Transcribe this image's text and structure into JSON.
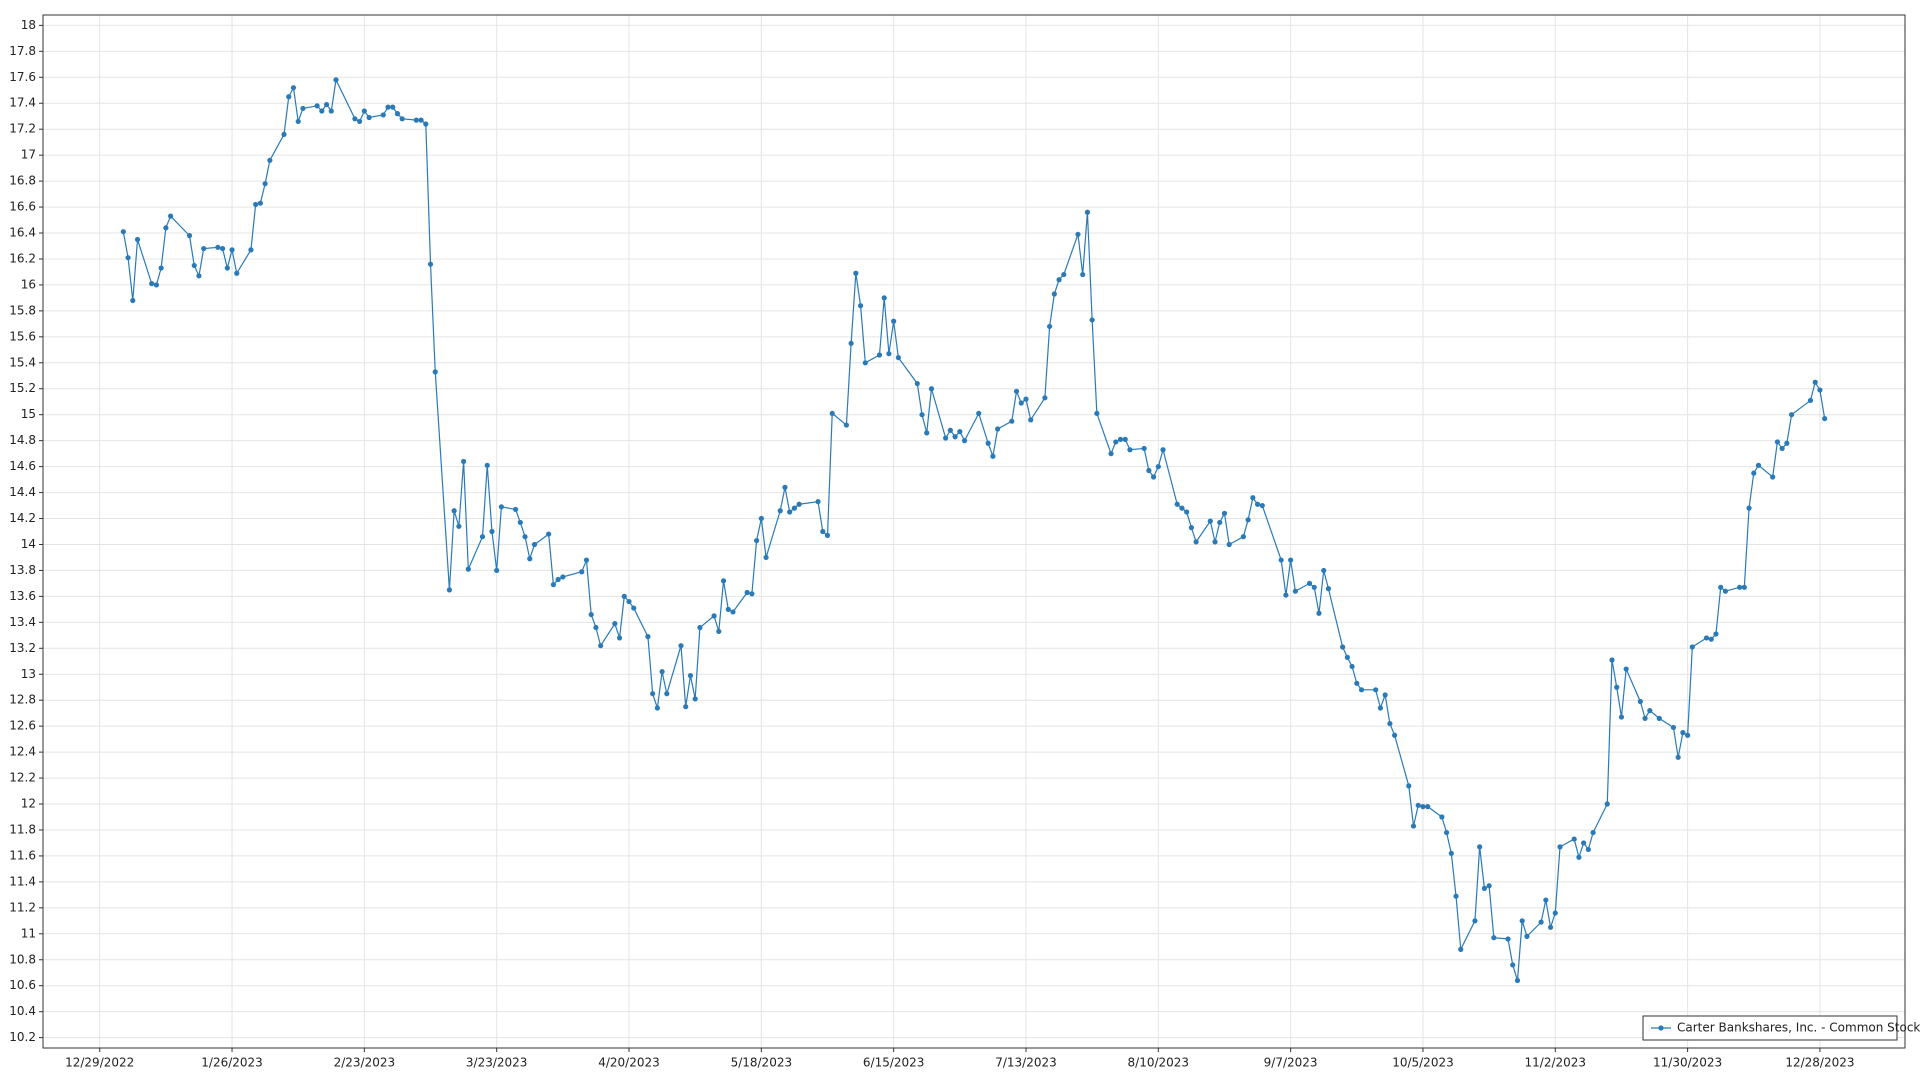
{
  "chart_data": {
    "type": "line",
    "x": [
      "1/3/2023",
      "1/4/2023",
      "1/5/2023",
      "1/6/2023",
      "1/9/2023",
      "1/10/2023",
      "1/11/2023",
      "1/12/2023",
      "1/13/2023",
      "1/17/2023",
      "1/18/2023",
      "1/19/2023",
      "1/20/2023",
      "1/23/2023",
      "1/24/2023",
      "1/25/2023",
      "1/26/2023",
      "1/27/2023",
      "1/30/2023",
      "1/31/2023",
      "2/1/2023",
      "2/2/2023",
      "2/3/2023",
      "2/6/2023",
      "2/7/2023",
      "2/8/2023",
      "2/9/2023",
      "2/10/2023",
      "2/13/2023",
      "2/14/2023",
      "2/15/2023",
      "2/16/2023",
      "2/17/2023",
      "2/21/2023",
      "2/22/2023",
      "2/23/2023",
      "2/24/2023",
      "2/27/2023",
      "2/28/2023",
      "3/1/2023",
      "3/2/2023",
      "3/3/2023",
      "3/6/2023",
      "3/7/2023",
      "3/8/2023",
      "3/9/2023",
      "3/10/2023",
      "3/13/2023",
      "3/14/2023",
      "3/15/2023",
      "3/16/2023",
      "3/17/2023",
      "3/20/2023",
      "3/21/2023",
      "3/22/2023",
      "3/23/2023",
      "3/24/2023",
      "3/27/2023",
      "3/28/2023",
      "3/29/2023",
      "3/30/2023",
      "3/31/2023",
      "4/3/2023",
      "4/4/2023",
      "4/5/2023",
      "4/6/2023",
      "4/10/2023",
      "4/11/2023",
      "4/12/2023",
      "4/13/2023",
      "4/14/2023",
      "4/17/2023",
      "4/18/2023",
      "4/19/2023",
      "4/20/2023",
      "4/21/2023",
      "4/24/2023",
      "4/25/2023",
      "4/26/2023",
      "4/27/2023",
      "4/28/2023",
      "5/1/2023",
      "5/2/2023",
      "5/3/2023",
      "5/4/2023",
      "5/5/2023",
      "5/8/2023",
      "5/9/2023",
      "5/10/2023",
      "5/11/2023",
      "5/12/2023",
      "5/15/2023",
      "5/16/2023",
      "5/17/2023",
      "5/18/2023",
      "5/19/2023",
      "5/22/2023",
      "5/23/2023",
      "5/24/2023",
      "5/25/2023",
      "5/26/2023",
      "5/30/2023",
      "5/31/2023",
      "6/1/2023",
      "6/2/2023",
      "6/5/2023",
      "6/6/2023",
      "6/7/2023",
      "6/8/2023",
      "6/9/2023",
      "6/12/2023",
      "6/13/2023",
      "6/14/2023",
      "6/15/2023",
      "6/16/2023",
      "6/20/2023",
      "6/21/2023",
      "6/22/2023",
      "6/23/2023",
      "6/26/2023",
      "6/27/2023",
      "6/28/2023",
      "6/29/2023",
      "6/30/2023",
      "7/3/2023",
      "7/5/2023",
      "7/6/2023",
      "7/7/2023",
      "7/10/2023",
      "7/11/2023",
      "7/12/2023",
      "7/13/2023",
      "7/14/2023",
      "7/17/2023",
      "7/18/2023",
      "7/19/2023",
      "7/20/2023",
      "7/21/2023",
      "7/24/2023",
      "7/25/2023",
      "7/26/2023",
      "7/27/2023",
      "7/28/2023",
      "7/31/2023",
      "8/1/2023",
      "8/2/2023",
      "8/3/2023",
      "8/4/2023",
      "8/7/2023",
      "8/8/2023",
      "8/9/2023",
      "8/10/2023",
      "8/11/2023",
      "8/14/2023",
      "8/15/2023",
      "8/16/2023",
      "8/17/2023",
      "8/18/2023",
      "8/21/2023",
      "8/22/2023",
      "8/23/2023",
      "8/24/2023",
      "8/25/2023",
      "8/28/2023",
      "8/29/2023",
      "8/30/2023",
      "8/31/2023",
      "9/1/2023",
      "9/5/2023",
      "9/6/2023",
      "9/7/2023",
      "9/8/2023",
      "9/11/2023",
      "9/12/2023",
      "9/13/2023",
      "9/14/2023",
      "9/15/2023",
      "9/18/2023",
      "9/19/2023",
      "9/20/2023",
      "9/21/2023",
      "9/22/2023",
      "9/25/2023",
      "9/26/2023",
      "9/27/2023",
      "9/28/2023",
      "9/29/2023",
      "10/2/2023",
      "10/3/2023",
      "10/4/2023",
      "10/5/2023",
      "10/6/2023",
      "10/9/2023",
      "10/10/2023",
      "10/11/2023",
      "10/12/2023",
      "10/13/2023",
      "10/16/2023",
      "10/17/2023",
      "10/18/2023",
      "10/19/2023",
      "10/20/2023",
      "10/23/2023",
      "10/24/2023",
      "10/25/2023",
      "10/26/2023",
      "10/27/2023",
      "10/30/2023",
      "10/31/2023",
      "11/1/2023",
      "11/2/2023",
      "11/3/2023",
      "11/6/2023",
      "11/7/2023",
      "11/8/2023",
      "11/9/2023",
      "11/10/2023",
      "11/13/2023",
      "11/14/2023",
      "11/15/2023",
      "11/16/2023",
      "11/17/2023",
      "11/20/2023",
      "11/21/2023",
      "11/22/2023",
      "11/24/2023",
      "11/27/2023",
      "11/28/2023",
      "11/29/2023",
      "11/30/2023",
      "12/1/2023",
      "12/4/2023",
      "12/5/2023",
      "12/6/2023",
      "12/7/2023",
      "12/8/2023",
      "12/11/2023",
      "12/12/2023",
      "12/13/2023",
      "12/14/2023",
      "12/15/2023",
      "12/18/2023",
      "12/19/2023",
      "12/20/2023",
      "12/21/2023",
      "12/22/2023",
      "12/26/2023",
      "12/27/2023",
      "12/28/2023",
      "12/29/2023"
    ],
    "series": [
      {
        "name": "Carter Bankshares, Inc. - Common Stock",
        "color": "#2a7ab8",
        "values": [
          16.41,
          16.21,
          15.88,
          16.35,
          16.01,
          16.0,
          16.13,
          16.44,
          16.53,
          16.38,
          16.15,
          16.07,
          16.28,
          16.29,
          16.28,
          16.13,
          16.27,
          16.09,
          16.27,
          16.62,
          16.63,
          16.78,
          16.96,
          17.16,
          17.45,
          17.52,
          17.26,
          17.36,
          17.38,
          17.34,
          17.39,
          17.34,
          17.58,
          17.28,
          17.26,
          17.34,
          17.29,
          17.31,
          17.37,
          17.37,
          17.32,
          17.28,
          17.27,
          17.27,
          17.24,
          16.16,
          15.33,
          13.65,
          14.26,
          14.14,
          14.64,
          13.81,
          14.06,
          14.61,
          14.1,
          13.8,
          14.29,
          14.27,
          14.17,
          14.06,
          13.89,
          14.0,
          14.08,
          13.69,
          13.73,
          13.75,
          13.79,
          13.88,
          13.46,
          13.36,
          13.22,
          13.39,
          13.28,
          13.6,
          13.56,
          13.51,
          13.29,
          12.85,
          12.74,
          13.02,
          12.85,
          13.22,
          12.75,
          12.99,
          12.81,
          13.36,
          13.45,
          13.33,
          13.72,
          13.5,
          13.48,
          13.63,
          13.62,
          14.03,
          14.2,
          13.9,
          14.26,
          14.44,
          14.25,
          14.28,
          14.31,
          14.33,
          14.1,
          14.07,
          15.01,
          14.92,
          15.55,
          16.09,
          15.84,
          15.4,
          15.46,
          15.9,
          15.47,
          15.72,
          15.44,
          15.24,
          15.0,
          14.86,
          15.2,
          14.82,
          14.88,
          14.83,
          14.87,
          14.8,
          15.01,
          14.78,
          14.68,
          14.89,
          14.95,
          15.18,
          15.09,
          15.12,
          14.96,
          15.13,
          15.68,
          15.93,
          16.04,
          16.08,
          16.39,
          16.08,
          16.56,
          15.73,
          15.01,
          14.7,
          14.79,
          14.81,
          14.81,
          14.73,
          14.74,
          14.57,
          14.52,
          14.6,
          14.73,
          14.31,
          14.28,
          14.25,
          14.13,
          14.02,
          14.18,
          14.02,
          14.17,
          14.24,
          14.0,
          14.06,
          14.19,
          14.36,
          14.31,
          14.3,
          13.88,
          13.61,
          13.88,
          13.64,
          13.7,
          13.67,
          13.47,
          13.8,
          13.66,
          13.21,
          13.13,
          13.06,
          12.93,
          12.88,
          12.88,
          12.74,
          12.84,
          12.62,
          12.53,
          12.14,
          11.83,
          11.99,
          11.98,
          11.98,
          11.9,
          11.78,
          11.62,
          11.29,
          10.88,
          11.1,
          11.67,
          11.35,
          11.37,
          10.97,
          10.96,
          10.76,
          10.64,
          11.1,
          10.98,
          11.09,
          11.26,
          11.05,
          11.16,
          11.67,
          11.73,
          11.59,
          11.7,
          11.65,
          11.78,
          12.0,
          13.11,
          12.9,
          12.67,
          13.04,
          12.79,
          12.66,
          12.72,
          12.66,
          12.59,
          12.36,
          12.55,
          12.53,
          13.21,
          13.28,
          13.27,
          13.31,
          13.67,
          13.64,
          13.67,
          13.67,
          14.28,
          14.55,
          14.61,
          14.52,
          14.79,
          14.74,
          14.78,
          15.0,
          15.11,
          15.25,
          15.19,
          14.97
        ]
      }
    ],
    "xlim": [
      "12/17/2022",
      "1/15/2024"
    ],
    "xticks": [
      "12/29/2022",
      "1/26/2023",
      "2/23/2023",
      "3/23/2023",
      "4/20/2023",
      "5/18/2023",
      "6/15/2023",
      "7/13/2023",
      "8/10/2023",
      "9/7/2023",
      "10/5/2023",
      "11/2/2023",
      "11/30/2023",
      "12/28/2023"
    ],
    "ylim": [
      10.12,
      18.08
    ],
    "yticks": [
      10.2,
      10.4,
      10.6,
      10.8,
      11,
      11.2,
      11.4,
      11.6,
      11.8,
      12,
      12.2,
      12.4,
      12.6,
      12.8,
      13,
      13.2,
      13.4,
      13.6,
      13.8,
      14,
      14.2,
      14.4,
      14.6,
      14.8,
      15,
      15.2,
      15.4,
      15.6,
      15.8,
      16,
      16.2,
      16.4,
      16.6,
      16.8,
      17,
      17.2,
      17.4,
      17.6,
      17.8,
      18
    ],
    "grid": true,
    "legend": "lower right"
  }
}
